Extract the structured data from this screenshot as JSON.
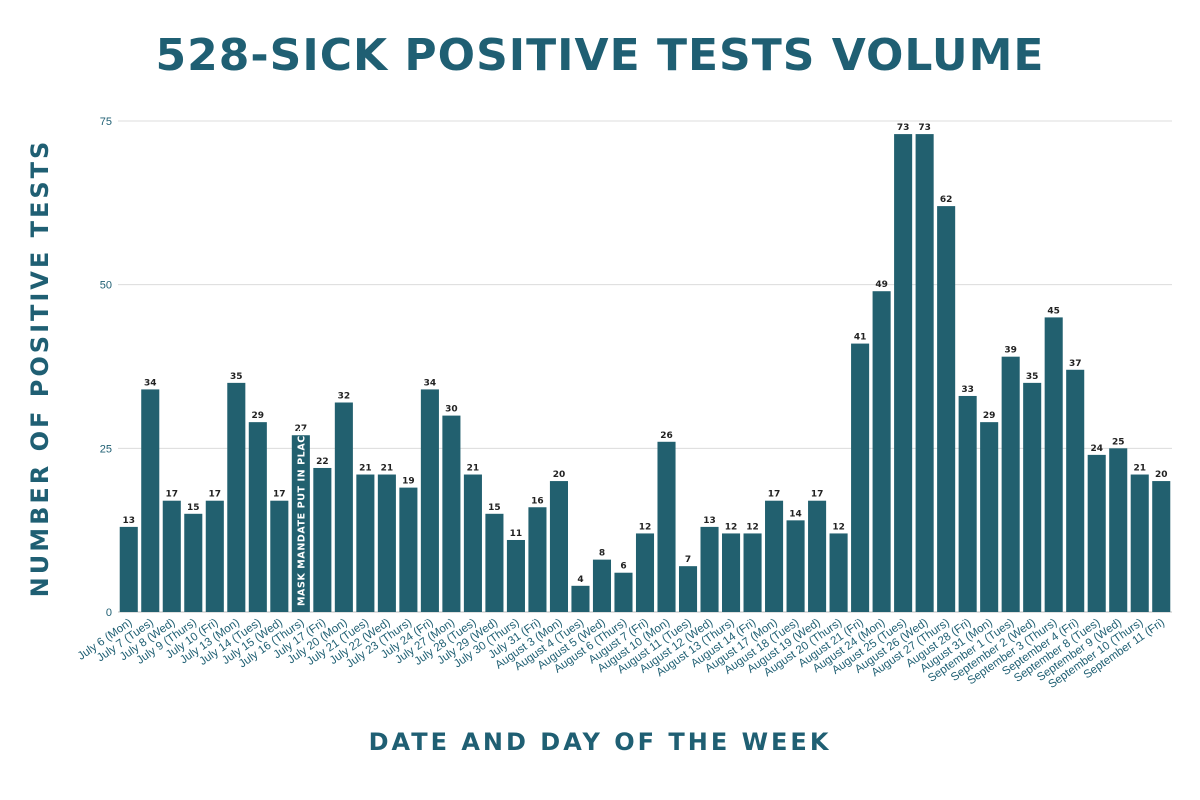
{
  "chart_data": {
    "type": "bar",
    "title": "528-SICK POSITIVE TESTS VOLUME",
    "xlabel": "DATE AND DAY OF THE WEEK",
    "ylabel": "NUMBER OF POSITIVE TESTS",
    "ylim": [
      0,
      75
    ],
    "yticks": [
      0,
      25,
      50,
      75
    ],
    "grid": true,
    "bar_color": "#22606f",
    "categories": [
      "July 6 (Mon)",
      "July 7 (Tues)",
      "July 8 (Wed)",
      "July 9 (Thurs)",
      "July 10 (Fri)",
      "July 13 (Mon)",
      "July 14 (Tues)",
      "July 15 (Wed)",
      "July 16 (Thurs)",
      "July 17 (Fri)",
      "July 20 (Mon)",
      "July 21 (Tues)",
      "July 22 (Wed)",
      "July 23 (Thurs)",
      "July 24 (Fri)",
      "July 27 (Mon)",
      "July 28 (Tues)",
      "July 29 (Wed)",
      "July 30 (Thurs)",
      "July 31 (Fri)",
      "August 3 (Mon)",
      "August 4 (Tues)",
      "August 5 (Wed)",
      "August 6 (Thurs)",
      "August 7 (Fri)",
      "August 10 (Mon)",
      "August 11 (Tues)",
      "August 12 (Wed)",
      "August 13 (Thurs)",
      "August 14 (Fri)",
      "August 17 (Mon)",
      "August 18 (Tues)",
      "August 19 (Wed)",
      "August 20 (Thurs)",
      "August 21 (Fri)",
      "August 24 (Mon)",
      "August 25 (Tues)",
      "August 26 (Wed)",
      "August 27 (Thurs)",
      "August 28 (Fri)",
      "August 31 (Mon)",
      "September 1 (Tues)",
      "September 2 (Wed)",
      "September 3 (Thurs)",
      "September 4 (Fri)",
      "September 8 (Tues)",
      "September 9 (Wed)",
      "September 10 (Thurs)",
      "September 11 (Fri)"
    ],
    "values": [
      13,
      34,
      17,
      15,
      17,
      35,
      29,
      17,
      27,
      22,
      32,
      21,
      21,
      19,
      34,
      30,
      21,
      15,
      11,
      16,
      20,
      4,
      8,
      6,
      12,
      26,
      7,
      13,
      12,
      12,
      17,
      14,
      17,
      12,
      41,
      49,
      73,
      73,
      62,
      33,
      29,
      39,
      35,
      45,
      37,
      24,
      25,
      21,
      20
    ],
    "annotations": [
      {
        "category": "July 16 (Thurs)",
        "text": "MASK MANDATE PUT IN PLACE"
      }
    ]
  }
}
